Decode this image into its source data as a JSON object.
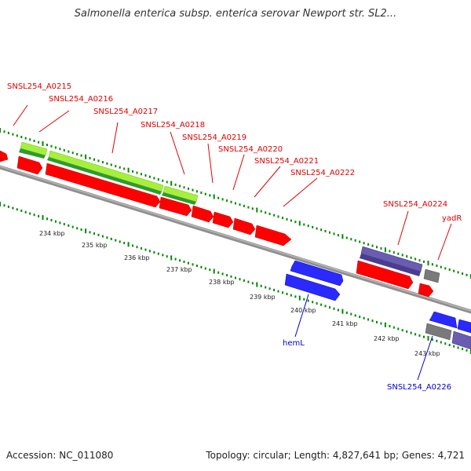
{
  "title": "Salmonella enterica subsp. enterica serovar Newport str. SL2...",
  "footer": {
    "accession": "Accession: NC_011080",
    "topology": "Topology: circular; Length: 4,827,641 bp; Genes: 4,721"
  },
  "colors": {
    "backbone": "#8f8f8f",
    "cds": "#ff0000",
    "rna": "#2a2aff",
    "tick_green": "#008800",
    "label_red": "#dd0000",
    "label_blue": "#0000cc",
    "gene_light_green": "#a6ef3c",
    "gene_dark_green": "#2f9a2f",
    "gene_purple": "#5a4b9e",
    "gene_grey": "#7a7a7a"
  },
  "scale_labels": [
    "234 kbp",
    "235 kbp",
    "236 kbp",
    "237 kbp",
    "238 kbp",
    "239 kbp",
    "240 kbp",
    "241 kbp",
    "242 kbp",
    "243 kbp"
  ],
  "gene_labels_top": [
    "SNSL254_A0215",
    "SNSL254_A0216",
    "SNSL254_A0217",
    "SNSL254_A0218",
    "SNSL254_A0219",
    "SNSL254_A0220",
    "SNSL254_A0221",
    "SNSL254_A0222",
    "SNSL254_A0224",
    "yadR"
  ],
  "gene_labels_bottom": [
    "hemL",
    "SNSL254_A0226"
  ]
}
